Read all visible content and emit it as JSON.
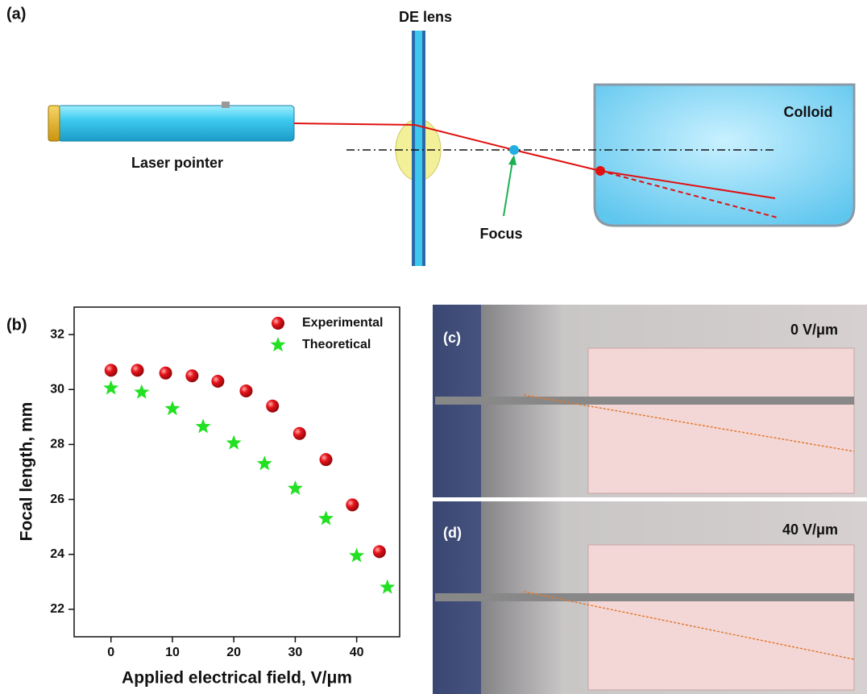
{
  "diagram": {
    "panel_label": "(a)",
    "lens_label": "DE lens",
    "colloid_label": "Colloid",
    "laser_label": "Laser pointer",
    "focus_label": "Focus"
  },
  "chart_data": {
    "type": "scatter",
    "panel_label": "(b)",
    "x_label": "Applied electrical field, V/μm",
    "y_label": "Focal length, mm",
    "xlim": [
      -6,
      47
    ],
    "xticks": [
      0,
      10,
      20,
      30,
      40
    ],
    "ylim": [
      21,
      33
    ],
    "yticks": [
      22,
      24,
      26,
      28,
      30,
      32
    ],
    "legend": "top-right",
    "series": [
      {
        "name": "Experimental",
        "color": "#e8141b",
        "marker": "circle",
        "x": [
          0,
          4.3,
          8.9,
          13.2,
          17.4,
          22,
          26.3,
          30.7,
          35,
          39.3,
          43.7
        ],
        "values": [
          30.7,
          30.7,
          30.6,
          30.5,
          30.3,
          29.95,
          29.4,
          28.4,
          27.45,
          25.8,
          24.1
        ]
      },
      {
        "name": "Theoretical",
        "color": "#22e022",
        "marker": "star",
        "x": [
          0,
          5,
          10,
          15,
          20,
          25,
          30,
          35,
          40,
          45
        ],
        "values": [
          30.05,
          29.9,
          29.3,
          28.65,
          28.05,
          27.3,
          26.4,
          25.3,
          23.95,
          22.8
        ]
      }
    ]
  },
  "photos": [
    {
      "panel_label": "(c)",
      "field_label": "0 V/μm"
    },
    {
      "panel_label": "(d)",
      "field_label": "40 V/μm"
    }
  ]
}
